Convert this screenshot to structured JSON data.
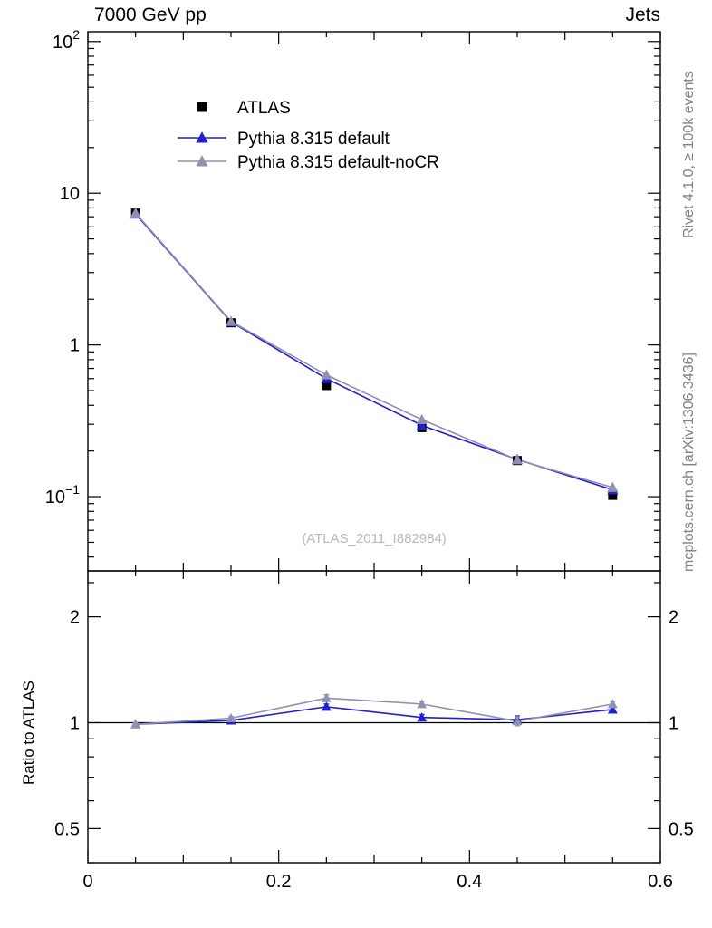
{
  "header": {
    "title_left": "7000 GeV pp",
    "title_right": "Jets"
  },
  "side_labels": {
    "top": "Rivet 4.1.0, ≥ 100k events",
    "bottom": "mcplots.cern.ch [arXiv:1306.3436]"
  },
  "watermark": "(ATLAS_2011_I882984)",
  "ratio_axis_label": "Ratio to ATLAS",
  "chart_data": {
    "type": "line",
    "title": "",
    "xlabel": "",
    "ylabel": "",
    "xlim": [
      0,
      0.6
    ],
    "x_minor_step": 0.05,
    "x_major_ticks": [
      {
        "value": 0,
        "label": "0"
      },
      {
        "value": 0.2,
        "label": "0.2"
      },
      {
        "value": 0.4,
        "label": "0.4"
      },
      {
        "value": 0.6,
        "label": "0.6"
      }
    ],
    "main_panel": {
      "yscale": "log",
      "ylim": [
        0.0324,
        116
      ],
      "y_ticks": [
        {
          "value": 100,
          "base": "10",
          "exp": "2"
        },
        {
          "value": 10,
          "base": "10",
          "exp": ""
        },
        {
          "value": 1,
          "base": "1",
          "exp": ""
        },
        {
          "value": 0.1,
          "base": "10",
          "exp": "−1"
        }
      ]
    },
    "ratio_panel": {
      "yscale": "log",
      "ylim": [
        0.4,
        2.7
      ],
      "reference_line": 1,
      "y_ticks": [
        {
          "value": 2,
          "label": "2"
        },
        {
          "value": 1,
          "label": "1"
        },
        {
          "value": 0.5,
          "label": "0.5"
        }
      ],
      "minor_ticks": [
        0.4,
        0.6,
        0.7,
        0.8,
        0.9,
        2.5
      ]
    },
    "x": [
      0.05,
      0.15,
      0.25,
      0.35,
      0.45,
      0.55
    ],
    "series": [
      {
        "name": "ATLAS",
        "marker": "square",
        "color": "#000000",
        "line": false,
        "values": [
          7.4,
          1.4,
          0.54,
          0.285,
          0.173,
          0.102
        ],
        "errors": [
          0.15,
          0.03,
          0.012,
          0.008,
          0.005,
          0.004
        ]
      },
      {
        "name": "Pythia 8.315 default",
        "marker": "triangle",
        "color": "#2020cc",
        "line": true,
        "values": [
          7.3,
          1.42,
          0.6,
          0.295,
          0.176,
          0.111
        ],
        "errors": [
          0.08,
          0.02,
          0.01,
          0.006,
          0.004,
          0.003
        ],
        "ratio": [
          0.99,
          1.015,
          1.11,
          1.035,
          1.02,
          1.09
        ],
        "ratio_errors": [
          0.012,
          0.012,
          0.02,
          0.02,
          0.025,
          0.02
        ]
      },
      {
        "name": "Pythia 8.315 default-noCR",
        "marker": "triangle",
        "color": "#9090b0",
        "line": true,
        "values": [
          7.4,
          1.43,
          0.635,
          0.322,
          0.175,
          0.115
        ],
        "errors": [
          0.08,
          0.02,
          0.01,
          0.006,
          0.004,
          0.003
        ],
        "ratio": [
          0.99,
          1.03,
          1.175,
          1.13,
          1.01,
          1.13
        ],
        "ratio_errors": [
          0.012,
          0.012,
          0.025,
          0.02,
          0.03,
          0.02
        ]
      }
    ]
  }
}
